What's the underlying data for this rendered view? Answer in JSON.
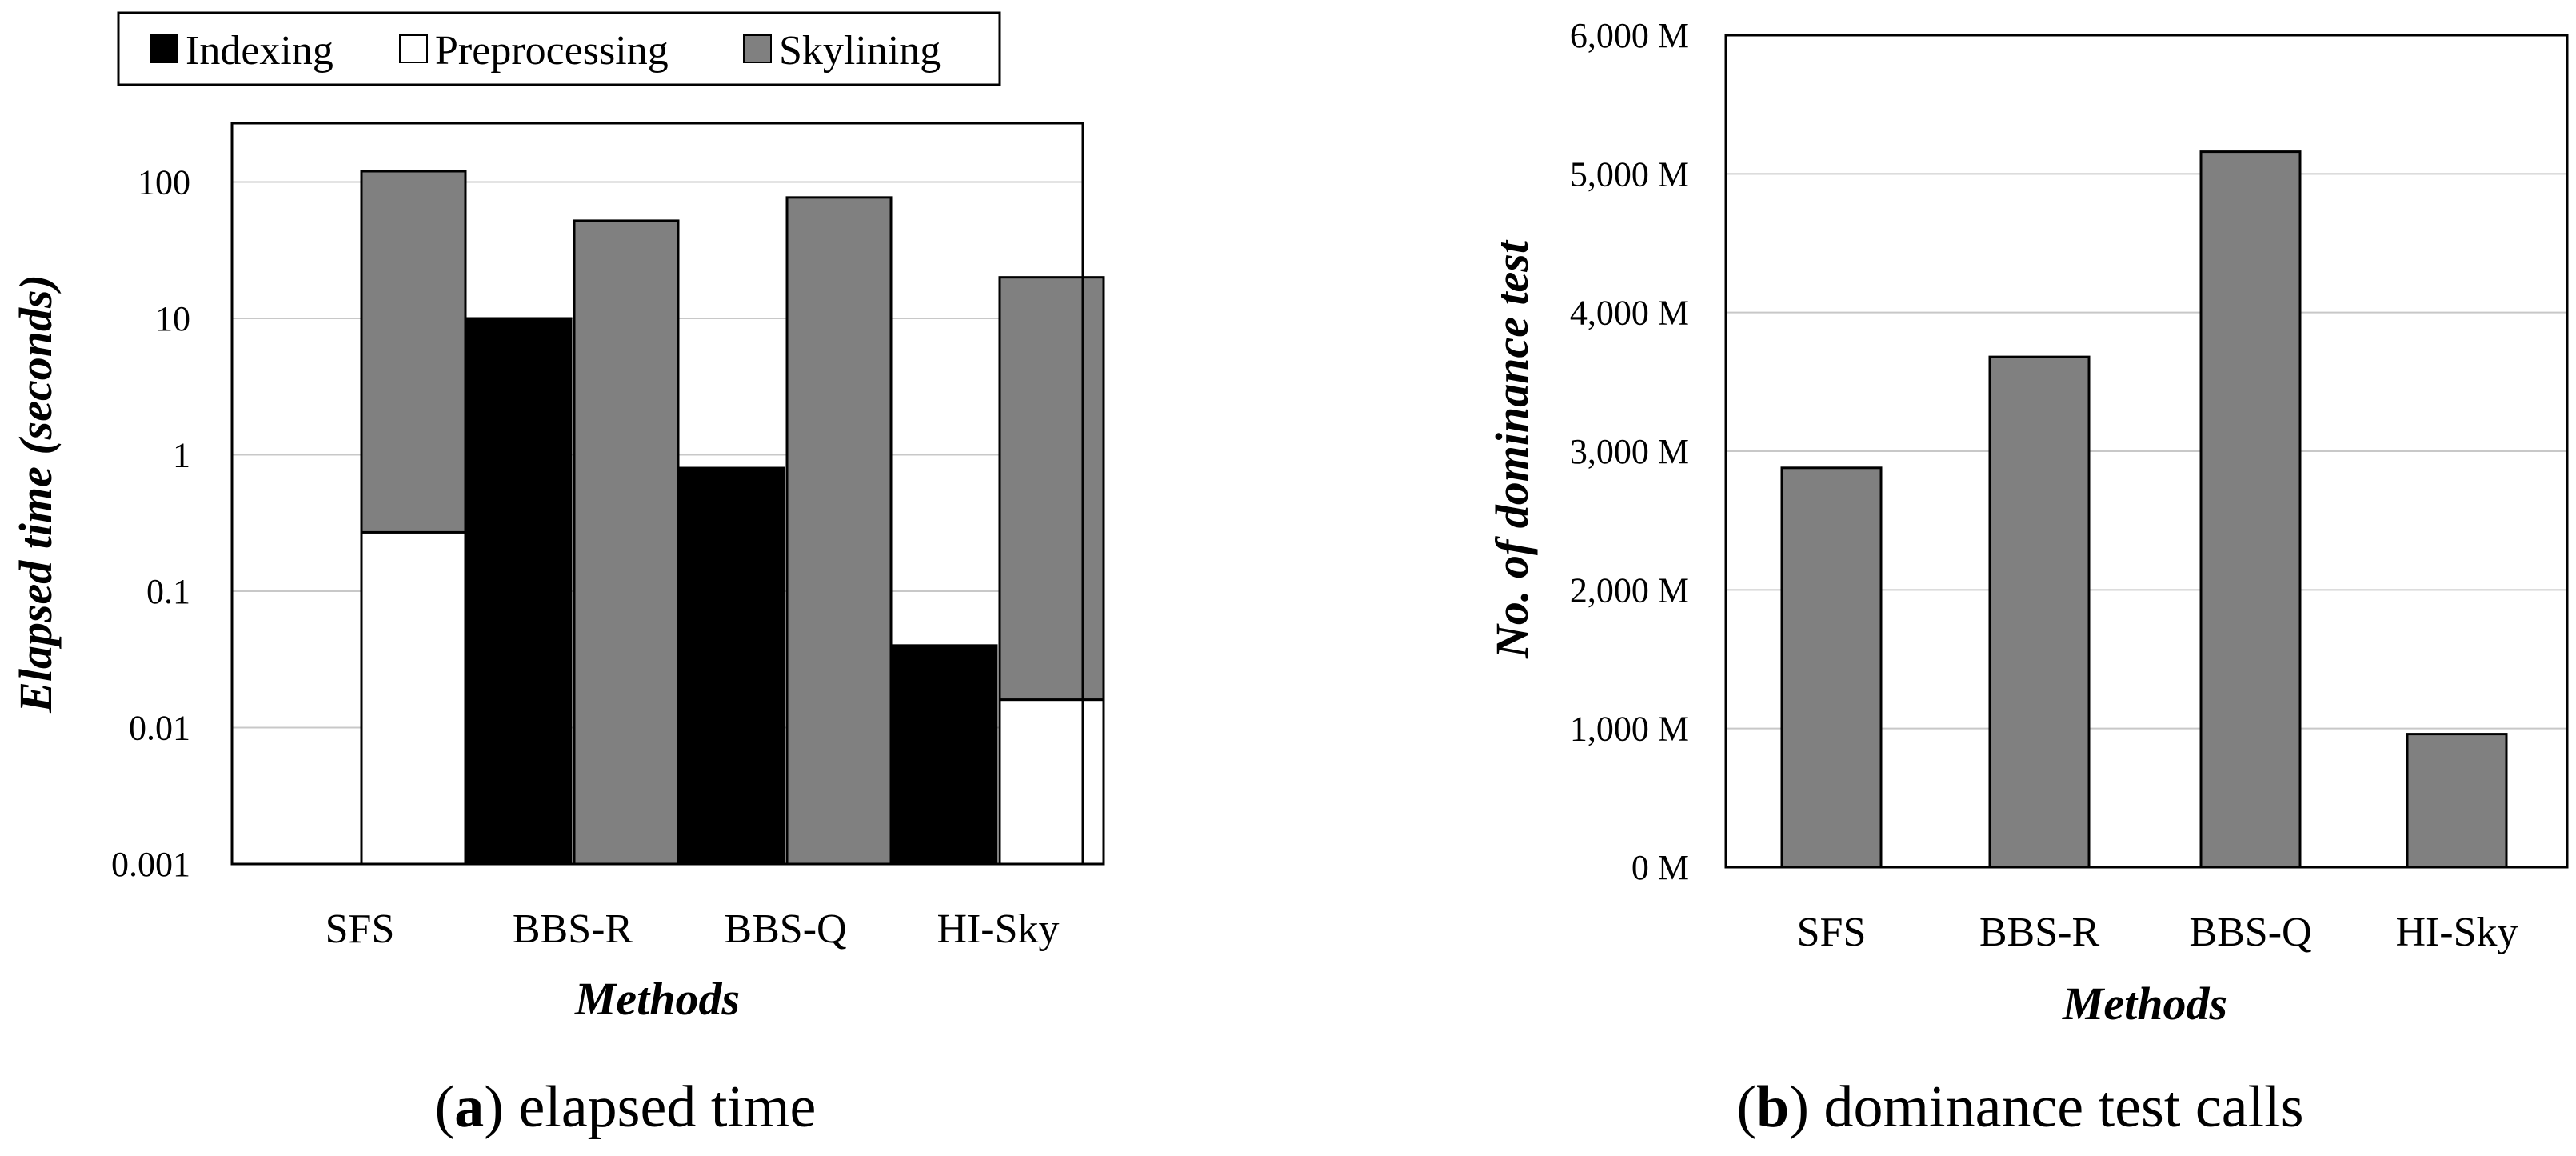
{
  "chart_data": [
    {
      "type": "bar",
      "scale": "log",
      "categories": [
        "SFS",
        "BBS-R",
        "BBS-Q",
        "HI-Sky"
      ],
      "legend": [
        "Indexing",
        "Preprocessing",
        "Skylining"
      ],
      "legend_position": "top",
      "series": [
        {
          "name": "Indexing",
          "color": "#000000",
          "values": [
            null,
            10,
            0.8,
            0.04
          ]
        },
        {
          "name": "Preprocessing",
          "color": "#ffffff",
          "values": [
            0.27,
            null,
            null,
            0.016
          ]
        },
        {
          "name": "Skylining",
          "color": "#808080",
          "values": [
            120,
            52,
            77,
            20
          ]
        }
      ],
      "yticks": [
        "0.001",
        "0.01",
        "0.1",
        "1",
        "10",
        "100"
      ],
      "ylim": [
        0.001,
        300
      ],
      "xlabel": "Methods",
      "ylabel": "Elapsed time (seconds)",
      "caption_letter": "a",
      "caption_text": "elapsed time"
    },
    {
      "type": "bar",
      "categories": [
        "SFS",
        "BBS-R",
        "BBS-Q",
        "HI-Sky"
      ],
      "series": [
        {
          "name": "Dominance tests",
          "color": "#808080",
          "values": [
            2880,
            3680,
            5160,
            960
          ]
        }
      ],
      "unit": "M",
      "yticks": [
        "0 M",
        "1,000 M",
        "2,000 M",
        "3,000 M",
        "4,000 M",
        "5,000 M",
        "6,000 M"
      ],
      "ylim": [
        0,
        6000
      ],
      "xlabel": "Methods",
      "ylabel": "No. of dominance test",
      "caption_letter": "b",
      "caption_text": "dominance test calls"
    }
  ]
}
